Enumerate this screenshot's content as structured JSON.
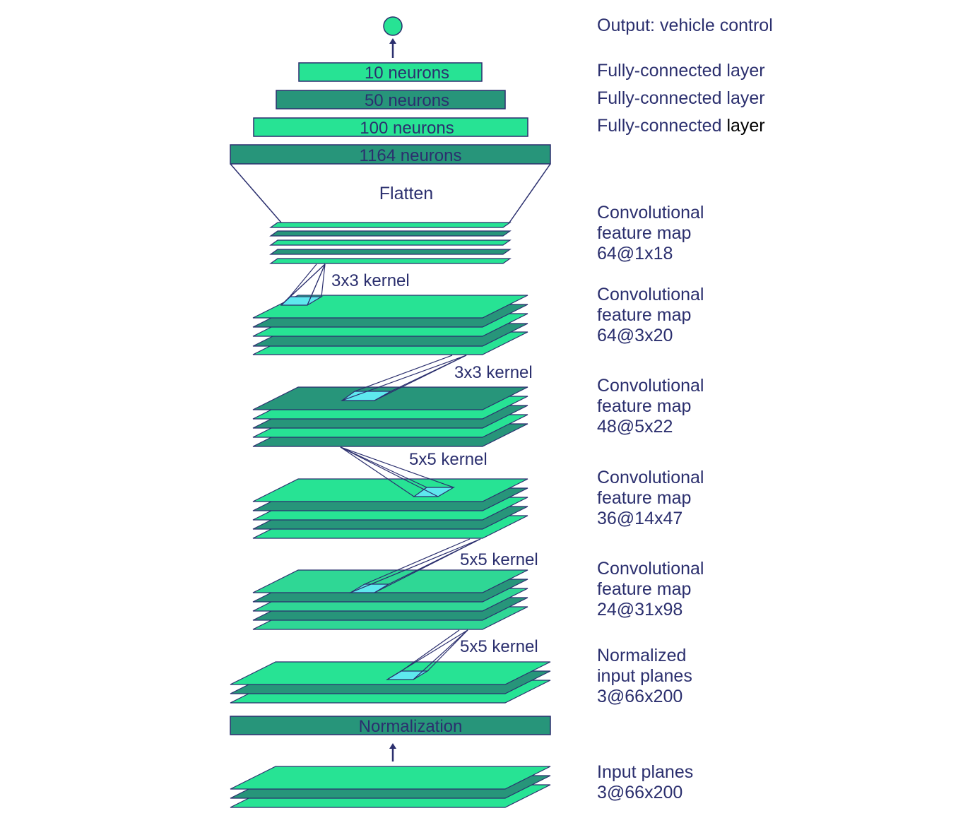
{
  "colors": {
    "stroke": "#2b2f6e",
    "light_green": "#27e394",
    "dark_green": "#27957a",
    "mid_green": "#2fd795",
    "kernel_fill": "#5ee8ee",
    "text": "#2b2f6e",
    "text_black": "#000000"
  },
  "output": {
    "label": "Output: vehicle control"
  },
  "fc_layers": [
    {
      "label": "10 neurons",
      "side": "Fully-connected layer"
    },
    {
      "label": "50 neurons",
      "side": "Fully-connected layer"
    },
    {
      "label": "100 neurons",
      "side_pre": "Fully-connected ",
      "side_post": "layer"
    },
    {
      "label": "1164 neurons"
    }
  ],
  "flatten": {
    "label": "Flatten"
  },
  "conv_maps": [
    {
      "lines": [
        "Convolutional",
        "feature map",
        "64@1x18"
      ]
    },
    {
      "lines": [
        "Convolutional",
        "feature map",
        "64@3x20"
      ]
    },
    {
      "lines": [
        "Convolutional",
        "feature map",
        "48@5x22"
      ]
    },
    {
      "lines": [
        "Convolutional",
        "feature map",
        "36@14x47"
      ]
    },
    {
      "lines": [
        "Convolutional",
        "feature map",
        "24@31x98"
      ]
    }
  ],
  "kernels": [
    "3x3 kernel",
    "3x3 kernel",
    "5x5 kernel",
    "5x5 kernel",
    "5x5 kernel"
  ],
  "normalized": {
    "lines": [
      "Normalized",
      "input planes",
      "3@66x200"
    ]
  },
  "normalization": {
    "label": "Normalization"
  },
  "input": {
    "lines": [
      "Input planes",
      "3@66x200"
    ]
  }
}
